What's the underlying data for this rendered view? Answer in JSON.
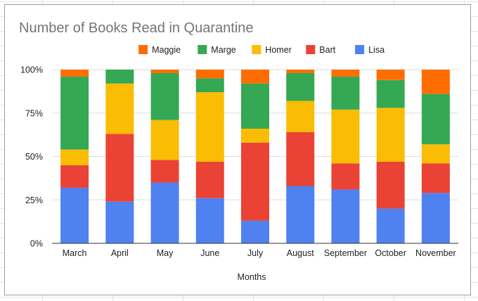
{
  "chart_data": {
    "type": "bar",
    "stacked": true,
    "normalized": true,
    "title": "Number of Books Read in Quarantine",
    "xlabel": "Months",
    "ylabel": "",
    "categories": [
      "March",
      "April",
      "May",
      "June",
      "July",
      "August",
      "September",
      "October",
      "November"
    ],
    "y_ticks": [
      "0%",
      "25%",
      "50%",
      "75%",
      "100%"
    ],
    "ylim": [
      0,
      100
    ],
    "grid": true,
    "legend": {
      "position": "top",
      "order": [
        "Maggie",
        "Marge",
        "Homer",
        "Bart",
        "Lisa"
      ]
    },
    "series": [
      {
        "name": "Lisa",
        "color": "#4f81f0",
        "values": [
          32,
          24,
          35,
          26,
          13,
          33,
          31,
          20,
          29
        ]
      },
      {
        "name": "Bart",
        "color": "#ea4335",
        "values": [
          13,
          39,
          13,
          21,
          45,
          31,
          15,
          27,
          17
        ]
      },
      {
        "name": "Homer",
        "color": "#fbbc04",
        "values": [
          9,
          29,
          23,
          40,
          8,
          18,
          31,
          31,
          11
        ]
      },
      {
        "name": "Marge",
        "color": "#34a853",
        "values": [
          42,
          8,
          27,
          8,
          26,
          16,
          19,
          16,
          29
        ]
      },
      {
        "name": "Maggie",
        "color": "#ff6d01",
        "values": [
          4,
          0,
          2,
          5,
          8,
          2,
          4,
          6,
          14
        ]
      }
    ]
  }
}
